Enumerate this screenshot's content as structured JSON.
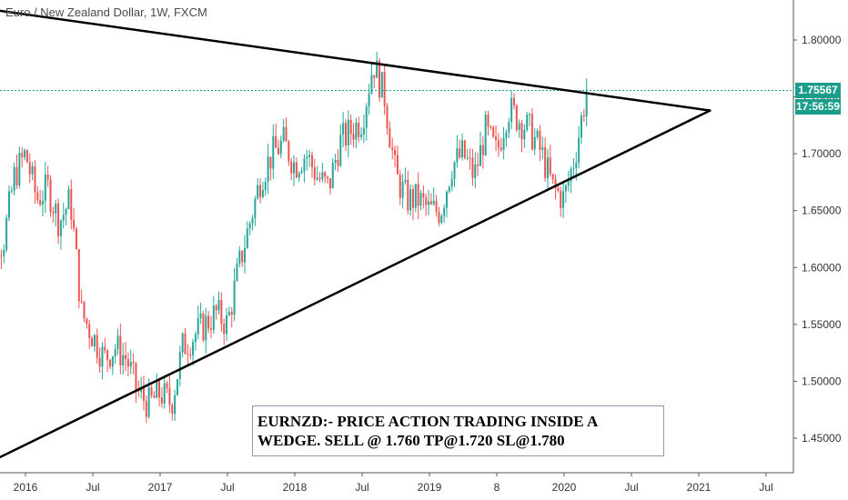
{
  "symbol": "Euro / New Zealand Dollar, 1W, FXCM",
  "price_badge": "1.75567",
  "timer_badge": "17:56:59",
  "annotation": {
    "line1": "EURNZD:- PRICE ACTION TRADING INSIDE A",
    "line2": "WEDGE. SELL @ 1.760 TP@1.720 SL@1.780"
  },
  "colors": {
    "up": "#26a69a",
    "down": "#ef5350",
    "price_line": "#1c9c8b",
    "trendline": "#000000",
    "badge": "#1c9c8b"
  },
  "chart_data": {
    "type": "candlestick",
    "ylim": [
      1.415,
      1.835
    ],
    "y_ticks": [
      1.8,
      1.75,
      1.7,
      1.65,
      1.6,
      1.55,
      1.5,
      1.45
    ],
    "y_tick_labels": [
      "1.80000",
      "1.75000",
      "1.70000",
      "1.65000",
      "1.60000",
      "1.55000",
      "1.50000",
      "1.45000"
    ],
    "x_tick_labels": [
      {
        "label": "2016",
        "date": "2016-01"
      },
      {
        "label": "Jul",
        "date": "2016-07"
      },
      {
        "label": "2017",
        "date": "2017-01"
      },
      {
        "label": "Jul",
        "date": "2017-07"
      },
      {
        "label": "2018",
        "date": "2018-01"
      },
      {
        "label": "Jul",
        "date": "2018-07"
      },
      {
        "label": "2019",
        "date": "2019-01"
      },
      {
        "label": "8",
        "date": "2019-07"
      },
      {
        "label": "2020",
        "date": "2020-01"
      },
      {
        "label": "Jul",
        "date": "2020-07"
      },
      {
        "label": "2021",
        "date": "2021-01"
      },
      {
        "label": "Jul",
        "date": "2021-07"
      }
    ],
    "current_price": 1.75567,
    "price_path": [
      [
        "2015-09",
        1.67
      ],
      [
        "2015-10",
        1.63
      ],
      [
        "2015-11",
        1.62
      ],
      [
        "2015-12",
        1.68
      ],
      [
        "2016-01",
        1.7
      ],
      [
        "2016-02",
        1.66
      ],
      [
        "2016-03",
        1.67
      ],
      [
        "2016-04",
        1.64
      ],
      [
        "2016-05",
        1.66
      ],
      [
        "2016-06",
        1.56
      ],
      [
        "2016-07",
        1.54
      ],
      [
        "2016-08",
        1.52
      ],
      [
        "2016-09",
        1.53
      ],
      [
        "2016-10",
        1.52
      ],
      [
        "2016-11",
        1.49
      ],
      [
        "2016-12",
        1.48
      ],
      [
        "2017-01",
        1.49
      ],
      [
        "2017-02",
        1.48
      ],
      [
        "2017-03",
        1.53
      ],
      [
        "2017-04",
        1.54
      ],
      [
        "2017-05",
        1.55
      ],
      [
        "2017-06",
        1.56
      ],
      [
        "2017-07",
        1.55
      ],
      [
        "2017-08",
        1.6
      ],
      [
        "2017-09",
        1.64
      ],
      [
        "2017-10",
        1.68
      ],
      [
        "2017-11",
        1.7
      ],
      [
        "2017-12",
        1.71
      ],
      [
        "2018-01",
        1.69
      ],
      [
        "2018-02",
        1.7
      ],
      [
        "2018-03",
        1.68
      ],
      [
        "2018-04",
        1.67
      ],
      [
        "2018-05",
        1.71
      ],
      [
        "2018-06",
        1.72
      ],
      [
        "2018-07",
        1.73
      ],
      [
        "2018-08",
        1.78
      ],
      [
        "2018-09",
        1.75
      ],
      [
        "2018-10",
        1.68
      ],
      [
        "2018-11",
        1.66
      ],
      [
        "2018-12",
        1.66
      ],
      [
        "2019-01",
        1.65
      ],
      [
        "2019-02",
        1.65
      ],
      [
        "2019-03",
        1.69
      ],
      [
        "2019-04",
        1.7
      ],
      [
        "2019-05",
        1.68
      ],
      [
        "2019-06",
        1.72
      ],
      [
        "2019-07",
        1.7
      ],
      [
        "2019-08",
        1.74
      ],
      [
        "2019-09",
        1.73
      ],
      [
        "2019-10",
        1.72
      ],
      [
        "2019-11",
        1.7
      ],
      [
        "2019-12",
        1.67
      ],
      [
        "2020-01",
        1.66
      ],
      [
        "2020-02",
        1.7
      ],
      [
        "2020-03",
        1.75567
      ]
    ],
    "trendlines": [
      {
        "name": "upper",
        "from": [
          "2015-04",
          1.835
        ],
        "to": [
          "2021-02",
          1.738
        ]
      },
      {
        "name": "lower",
        "from": [
          "2015-09",
          1.425
        ],
        "to": [
          "2021-02",
          1.738
        ]
      }
    ]
  }
}
